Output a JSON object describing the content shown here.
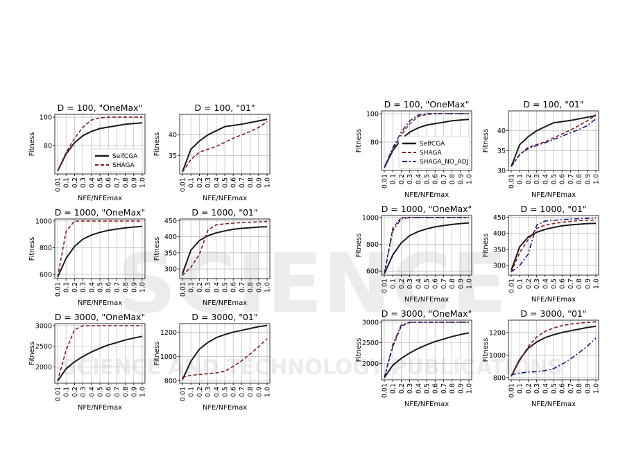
{
  "colors": {
    "SelfCGA": "#1a1a1a",
    "SHAGA": "#7f1a1a",
    "SHAGA_NO_ADJ": "#1a1a80",
    "grid": "#b0b0b0",
    "watermark": "#e9e9e9"
  },
  "watermark": {
    "line1": "SCIENCE",
    "line2": "SCIENCE AND TECHNOLOGY PUBLICATIONS"
  },
  "chart_data": [
    {
      "type": "line",
      "title": "D = 100, \"OneMax\"",
      "xlabel": "NFE/NFEmax",
      "ylabel": "Fitness",
      "x": [
        "0.01",
        "0.1",
        "0.2",
        "0.3",
        "0.4",
        "0.5",
        "0.6",
        "0.7",
        "0.8",
        "0.9",
        "1.0"
      ],
      "ylim": [
        60,
        102
      ],
      "yticks": [
        80,
        100
      ],
      "legend": "lower-right",
      "grid": true,
      "series": [
        {
          "name": "SelfCGA",
          "values": [
            62,
            74,
            82,
            87,
            90,
            92,
            93,
            94,
            95,
            95.5,
            96
          ]
        },
        {
          "name": "SHAGA",
          "values": [
            62,
            75,
            85,
            93,
            98,
            99.5,
            100,
            100,
            100,
            100,
            100
          ]
        }
      ]
    },
    {
      "type": "line",
      "title": "D = 100, \"01\"",
      "xlabel": "NFE/NFEmax",
      "ylabel": "Fitness",
      "x": [
        "0.01",
        "0.1",
        "0.2",
        "0.3",
        "0.4",
        "0.5",
        "0.6",
        "0.7",
        "0.8",
        "0.9",
        "1.0"
      ],
      "ylim": [
        30.5,
        45
      ],
      "yticks": [
        35,
        40
      ],
      "grid": true,
      "series": [
        {
          "name": "SelfCGA",
          "values": [
            31,
            36.5,
            38.5,
            40,
            41,
            42,
            42.3,
            42.6,
            43,
            43.4,
            43.8
          ]
        },
        {
          "name": "SHAGA",
          "values": [
            31,
            34,
            35.8,
            36.5,
            37.2,
            38.2,
            39.2,
            40,
            40.8,
            41.8,
            43.2
          ]
        }
      ]
    },
    {
      "type": "line",
      "title": "D = 1000, \"OneMax\"",
      "xlabel": "NFE/NFEmax",
      "ylabel": "Fitness",
      "x": [
        "0.01",
        "0.1",
        "0.2",
        "0.3",
        "0.4",
        "0.5",
        "0.6",
        "0.7",
        "0.8",
        "0.9",
        "1.0"
      ],
      "ylim": [
        570,
        1015
      ],
      "yticks": [
        600,
        800,
        1000
      ],
      "grid": true,
      "series": [
        {
          "name": "SelfCGA",
          "values": [
            580,
            720,
            810,
            865,
            895,
            915,
            930,
            940,
            948,
            955,
            960
          ]
        },
        {
          "name": "SHAGA",
          "values": [
            580,
            920,
            1000,
            1000,
            1000,
            1000,
            1000,
            1000,
            1000,
            1000,
            1000
          ]
        }
      ]
    },
    {
      "type": "line",
      "title": "D = 1000, \"01\"",
      "xlabel": "NFE/NFEmax",
      "ylabel": "Fitness",
      "x": [
        "0.01",
        "0.1",
        "0.2",
        "0.3",
        "0.4",
        "0.5",
        "0.6",
        "0.7",
        "0.8",
        "0.9",
        "1.0"
      ],
      "ylim": [
        270,
        455
      ],
      "yticks": [
        300,
        350,
        400,
        450
      ],
      "grid": true,
      "series": [
        {
          "name": "SelfCGA",
          "values": [
            285,
            358,
            388,
            403,
            412,
            418,
            423,
            426,
            428,
            430,
            431
          ]
        },
        {
          "name": "SHAGA",
          "values": [
            280,
            305,
            345,
            420,
            437,
            440,
            442,
            444,
            445,
            446,
            447
          ]
        }
      ]
    },
    {
      "type": "line",
      "title": "D = 3000, \"OneMax\"",
      "xlabel": "NFE/NFEmax",
      "ylabel": "Fitness",
      "x": [
        "0.01",
        "0.1",
        "0.2",
        "0.3",
        "0.4",
        "0.5",
        "0.6",
        "0.7",
        "0.8",
        "0.9",
        "1.0"
      ],
      "ylim": [
        1600,
        3050
      ],
      "yticks": [
        2000,
        2500,
        3000
      ],
      "grid": true,
      "series": [
        {
          "name": "SelfCGA",
          "values": [
            1650,
            1950,
            2120,
            2250,
            2360,
            2450,
            2530,
            2590,
            2650,
            2700,
            2740
          ]
        },
        {
          "name": "SHAGA",
          "values": [
            1650,
            2400,
            2900,
            3000,
            3000,
            3000,
            3000,
            3000,
            3000,
            3000,
            3000
          ]
        }
      ]
    },
    {
      "type": "line",
      "title": "D = 3000, \"01\"",
      "xlabel": "NFE/NFEmax",
      "ylabel": "Fitness",
      "x": [
        "0.01",
        "0.1",
        "0.2",
        "0.3",
        "0.4",
        "0.5",
        "0.6",
        "0.7",
        "0.8",
        "0.9",
        "1.0"
      ],
      "ylim": [
        780,
        1270
      ],
      "yticks": [
        800,
        1000,
        1200
      ],
      "grid": true,
      "series": [
        {
          "name": "SelfCGA",
          "values": [
            810,
            960,
            1060,
            1115,
            1155,
            1180,
            1200,
            1215,
            1230,
            1245,
            1255
          ]
        },
        {
          "name": "SHAGA",
          "values": [
            830,
            845,
            852,
            858,
            865,
            878,
            918,
            965,
            1020,
            1080,
            1145
          ]
        }
      ]
    },
    {
      "type": "line",
      "title": "D = 100, \"OneMax\"",
      "xlabel": "NFE/NFEmax",
      "ylabel": "Fitness",
      "x": [
        "0.01",
        "0.1",
        "0.2",
        "0.3",
        "0.4",
        "0.5",
        "0.6",
        "0.7",
        "0.8",
        "0.9",
        "1.0"
      ],
      "ylim": [
        60,
        102
      ],
      "yticks": [
        80,
        100
      ],
      "legend": "lower-right",
      "grid": true,
      "series": [
        {
          "name": "SelfCGA",
          "values": [
            62,
            74,
            82,
            87,
            90,
            92,
            93,
            94,
            95,
            95.5,
            96
          ]
        },
        {
          "name": "SHAGA",
          "values": [
            62,
            75,
            85,
            93,
            98,
            99.5,
            100,
            100,
            100,
            100,
            100
          ]
        },
        {
          "name": "SHAGA_NO_ADJ",
          "values": [
            62,
            76,
            87,
            95,
            99,
            100,
            100,
            100,
            100,
            100,
            100
          ]
        }
      ]
    },
    {
      "type": "line",
      "title": "D = 100, \"01\"",
      "xlabel": "NFE/NFEmax",
      "ylabel": "Fitness",
      "x": [
        "0.01",
        "0.1",
        "0.2",
        "0.3",
        "0.4",
        "0.5",
        "0.6",
        "0.7",
        "0.8",
        "0.9",
        "1.0"
      ],
      "ylim": [
        30,
        45
      ],
      "yticks": [
        30,
        35,
        40
      ],
      "grid": true,
      "series": [
        {
          "name": "SelfCGA",
          "values": [
            31,
            36.5,
            38.5,
            40,
            41,
            42,
            42.3,
            42.6,
            43,
            43.4,
            43.8
          ]
        },
        {
          "name": "SHAGA",
          "values": [
            31,
            34,
            35.8,
            36.5,
            37.2,
            38.2,
            39.2,
            40.2,
            41.3,
            42.5,
            44
          ]
        },
        {
          "name": "SHAGA_NO_ADJ",
          "values": [
            31,
            34,
            35.5,
            36.3,
            37,
            37.8,
            38.6,
            39.5,
            40.3,
            41.3,
            43
          ]
        }
      ]
    },
    {
      "type": "line",
      "title": "D = 1000, \"OneMax\"",
      "xlabel": "NFE/NFEmax",
      "ylabel": "Fitness",
      "x": [
        "0.01",
        "0.1",
        "0.2",
        "0.3",
        "0.4",
        "0.5",
        "0.6",
        "0.7",
        "0.8",
        "0.9",
        "1.0"
      ],
      "ylim": [
        570,
        1015
      ],
      "yticks": [
        600,
        800,
        1000
      ],
      "grid": true,
      "series": [
        {
          "name": "SelfCGA",
          "values": [
            580,
            720,
            810,
            865,
            895,
            915,
            930,
            940,
            948,
            955,
            960
          ]
        },
        {
          "name": "SHAGA",
          "values": [
            580,
            920,
            1000,
            1000,
            1000,
            1000,
            1000,
            1000,
            1000,
            1000,
            1000
          ]
        },
        {
          "name": "SHAGA_NO_ADJ",
          "values": [
            580,
            900,
            990,
            1000,
            1000,
            1000,
            1000,
            1000,
            1000,
            1000,
            1000
          ]
        }
      ]
    },
    {
      "type": "line",
      "title": "D = 1000, \"01\"",
      "xlabel": "NFE/NFEmax",
      "ylabel": "Fitness",
      "x": [
        "0.01",
        "0.1",
        "0.2",
        "0.3",
        "0.4",
        "0.5",
        "0.6",
        "0.7",
        "0.8",
        "0.9",
        "1.0"
      ],
      "ylim": [
        270,
        455
      ],
      "yticks": [
        300,
        350,
        400,
        450
      ],
      "grid": true,
      "series": [
        {
          "name": "SelfCGA",
          "values": [
            285,
            358,
            388,
            403,
            412,
            418,
            423,
            426,
            428,
            430,
            431
          ]
        },
        {
          "name": "SHAGA",
          "values": [
            280,
            340,
            380,
            415,
            425,
            430,
            434,
            437,
            439,
            440,
            441
          ]
        },
        {
          "name": "SHAGA_NO_ADJ",
          "values": [
            280,
            300,
            335,
            425,
            438,
            440,
            442,
            444,
            445,
            446,
            447
          ]
        }
      ]
    },
    {
      "type": "line",
      "title": "D = 3000, \"OneMax\"",
      "xlabel": "NFE/NFEmax",
      "ylabel": "Fitness",
      "x": [
        "0.01",
        "0.1",
        "0.2",
        "0.3",
        "0.4",
        "0.5",
        "0.6",
        "0.7",
        "0.8",
        "0.9",
        "1.0"
      ],
      "ylim": [
        1600,
        3050
      ],
      "yticks": [
        2000,
        2500,
        3000
      ],
      "grid": true,
      "series": [
        {
          "name": "SelfCGA",
          "values": [
            1650,
            1950,
            2120,
            2250,
            2360,
            2450,
            2530,
            2590,
            2650,
            2700,
            2740
          ]
        },
        {
          "name": "SHAGA",
          "values": [
            1650,
            2400,
            2900,
            3000,
            3000,
            3000,
            3000,
            3000,
            3000,
            3000,
            3000
          ]
        },
        {
          "name": "SHAGA_NO_ADJ",
          "values": [
            1650,
            2450,
            2930,
            3000,
            3000,
            3000,
            3000,
            3000,
            3000,
            3000,
            3000
          ]
        }
      ]
    },
    {
      "type": "line",
      "title": "D = 3000, \"01\"",
      "xlabel": "NFE/NFEmax",
      "ylabel": "Fitness",
      "x": [
        "0.01",
        "0.1",
        "0.2",
        "0.3",
        "0.4",
        "0.5",
        "0.6",
        "0.7",
        "0.8",
        "0.9",
        "1.0"
      ],
      "ylim": [
        780,
        1310
      ],
      "yticks": [
        800,
        1000,
        1200
      ],
      "grid": true,
      "series": [
        {
          "name": "SelfCGA",
          "values": [
            810,
            960,
            1060,
            1115,
            1155,
            1180,
            1200,
            1215,
            1230,
            1245,
            1255
          ]
        },
        {
          "name": "SHAGA",
          "values": [
            815,
            950,
            1075,
            1160,
            1210,
            1240,
            1262,
            1275,
            1283,
            1290,
            1295
          ]
        },
        {
          "name": "SHAGA_NO_ADJ",
          "values": [
            825,
            840,
            848,
            852,
            862,
            878,
            918,
            965,
            1020,
            1080,
            1150
          ]
        }
      ]
    }
  ]
}
